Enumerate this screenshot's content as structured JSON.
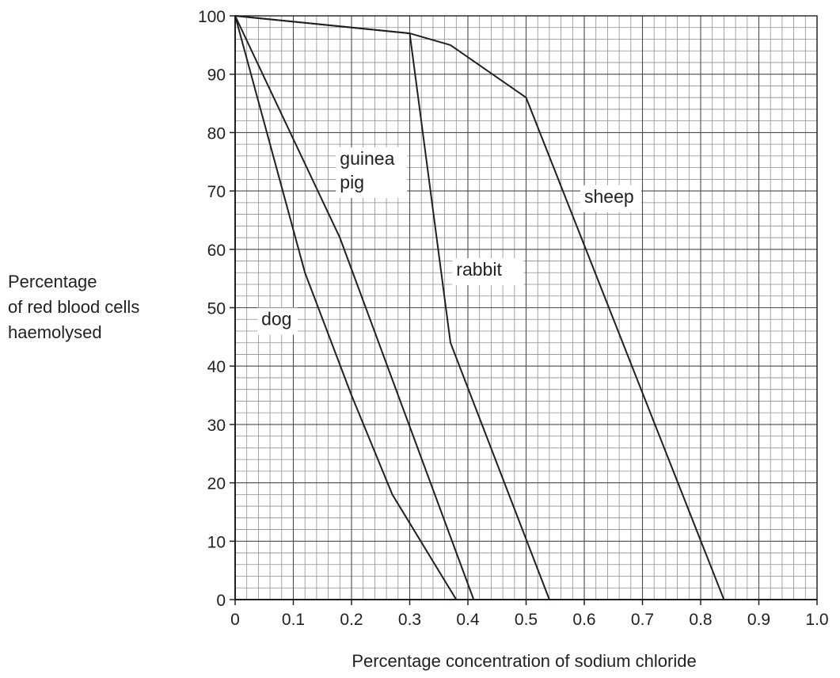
{
  "chart_data": {
    "type": "line",
    "xlabel": "Percentage concentration of sodium chloride",
    "ylabel": "Percentage of red blood cells haemolysed",
    "ylabel_lines": [
      "Percentage",
      "of red blood cells",
      "haemolysed"
    ],
    "xlim": [
      0,
      1.0
    ],
    "ylim": [
      0,
      100
    ],
    "x_ticks": [
      "0",
      "0.1",
      "0.2",
      "0.3",
      "0.4",
      "0.5",
      "0.6",
      "0.7",
      "0.8",
      "0.9",
      "1.0"
    ],
    "y_ticks": [
      "0",
      "10",
      "20",
      "30",
      "40",
      "50",
      "60",
      "70",
      "80",
      "90",
      "100"
    ],
    "grid": true,
    "series": [
      {
        "name": "dog",
        "label_lines": [
          "dog"
        ],
        "points": [
          [
            0,
            100
          ],
          [
            0.12,
            56
          ],
          [
            0.2,
            35
          ],
          [
            0.27,
            18
          ],
          [
            0.38,
            0
          ]
        ]
      },
      {
        "name": "guinea pig",
        "label_lines": [
          "guinea",
          "pig"
        ],
        "points": [
          [
            0,
            100
          ],
          [
            0.18,
            62
          ],
          [
            0.41,
            0
          ]
        ]
      },
      {
        "name": "rabbit",
        "label_lines": [
          "rabbit"
        ],
        "points": [
          [
            0,
            100
          ],
          [
            0.3,
            97
          ],
          [
            0.37,
            44
          ],
          [
            0.54,
            0
          ]
        ]
      },
      {
        "name": "sheep",
        "label_lines": [
          "sheep"
        ],
        "points": [
          [
            0,
            100
          ],
          [
            0.3,
            97
          ],
          [
            0.37,
            95
          ],
          [
            0.5,
            86
          ],
          [
            0.84,
            0
          ]
        ]
      }
    ]
  }
}
